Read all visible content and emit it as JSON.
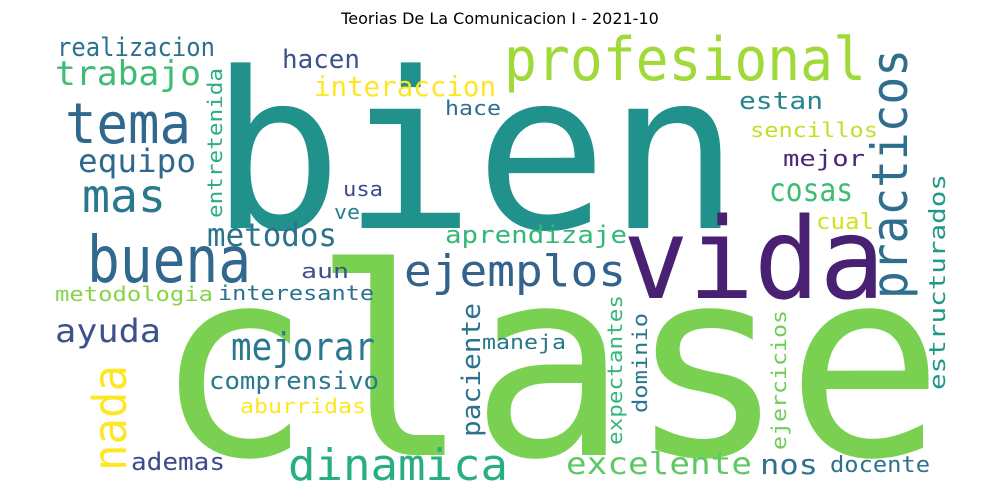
{
  "title": "Teorias De La Comunicacion I - 2021-10",
  "words": [
    {
      "text": "bien",
      "color": "#21918c"
    },
    {
      "text": "clase",
      "color": "#7ad151"
    },
    {
      "text": "vida",
      "color": "#482173"
    },
    {
      "text": "profesional",
      "color": "#a0da39"
    },
    {
      "text": "tema",
      "color": "#31688e"
    },
    {
      "text": "buena",
      "color": "#31688e"
    },
    {
      "text": "ejemplos",
      "color": "#33638d"
    },
    {
      "text": "practicos",
      "color": "#2e6e8e"
    },
    {
      "text": "dinamica",
      "color": "#29af7f"
    },
    {
      "text": "mas",
      "color": "#2a788e"
    },
    {
      "text": "trabajo",
      "color": "#3fbc73"
    },
    {
      "text": "equipo",
      "color": "#31688e"
    },
    {
      "text": "nada",
      "color": "#fde725"
    },
    {
      "text": "metodos",
      "color": "#2c728e"
    },
    {
      "text": "mejorar",
      "color": "#2a788e"
    },
    {
      "text": "excelente",
      "color": "#5ec962"
    },
    {
      "text": "cosas",
      "color": "#3fbc73"
    },
    {
      "text": "ayuda",
      "color": "#3b528b"
    },
    {
      "text": "realizacion",
      "color": "#2c728e"
    },
    {
      "text": "hacen",
      "color": "#3b528b"
    },
    {
      "text": "interaccion",
      "color": "#fde725"
    },
    {
      "text": "hace",
      "color": "#2e6e8e"
    },
    {
      "text": "estan",
      "color": "#25848e"
    },
    {
      "text": "sencillos",
      "color": "#c2df23"
    },
    {
      "text": "mejor",
      "color": "#482878"
    },
    {
      "text": "usa",
      "color": "#3e4a89"
    },
    {
      "text": "ve",
      "color": "#26828e"
    },
    {
      "text": "entretenida",
      "color": "#2ab07f"
    },
    {
      "text": "cual",
      "color": "#d2e21b"
    },
    {
      "text": "aprendizaje",
      "color": "#35b779"
    },
    {
      "text": "estructurados",
      "color": "#1f988b"
    },
    {
      "text": "aun",
      "color": "#3b528b"
    },
    {
      "text": "metodologia",
      "color": "#86d549"
    },
    {
      "text": "interesante",
      "color": "#2c728e"
    },
    {
      "text": "comprensivo",
      "color": "#2a788e"
    },
    {
      "text": "aburridas",
      "color": "#fde725"
    },
    {
      "text": "paciente",
      "color": "#2c728e"
    },
    {
      "text": "maneja",
      "color": "#2a788e"
    },
    {
      "text": "expectantes",
      "color": "#35b779"
    },
    {
      "text": "dominio",
      "color": "#2a788e"
    },
    {
      "text": "ejercicios",
      "color": "#6ece58"
    },
    {
      "text": "ademas",
      "color": "#3e4989"
    },
    {
      "text": "nos",
      "color": "#2c728e"
    },
    {
      "text": "docente",
      "color": "#2c728e"
    }
  ]
}
